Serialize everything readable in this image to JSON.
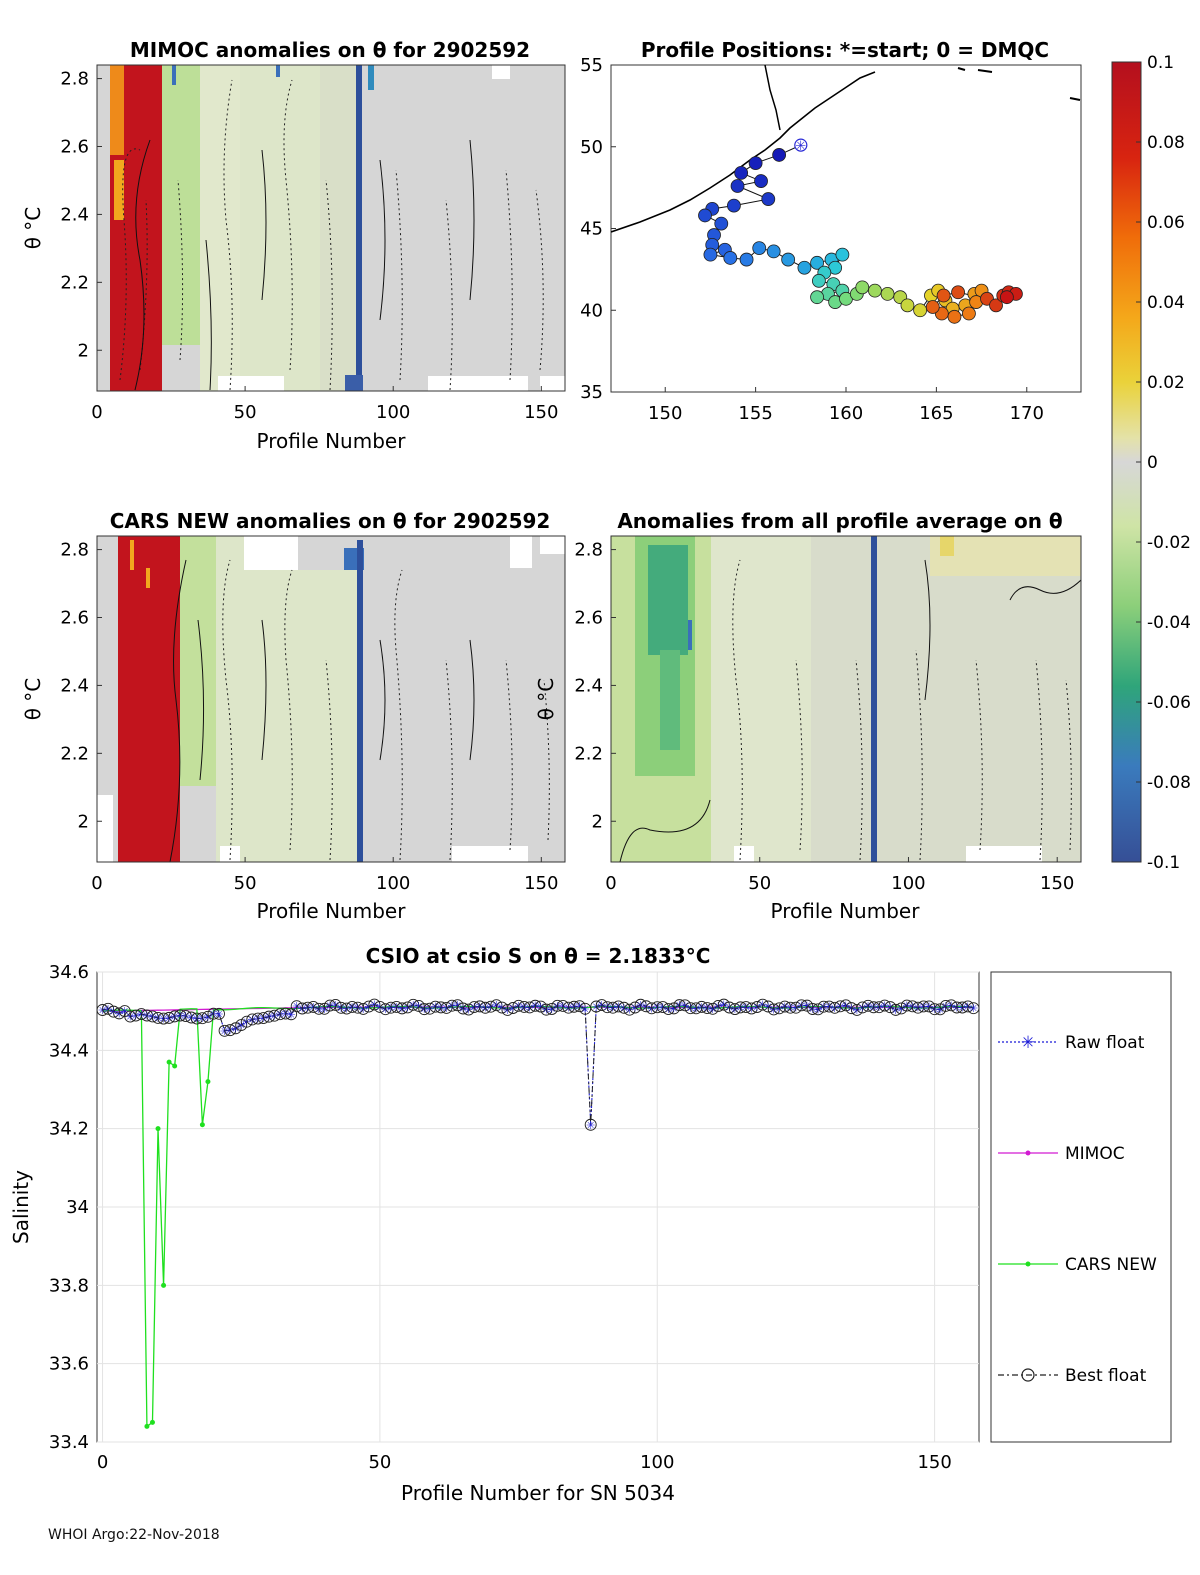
{
  "figure": {
    "footer": "WHOI Argo:22-Nov-2018"
  },
  "chart_data": [
    {
      "id": "mimoc",
      "type": "heatmap",
      "title": "MIMOC anomalies on θ  for 2902592",
      "xlabel": "Profile Number",
      "ylabel": "θ °C",
      "xlim": [
        0,
        158
      ],
      "ylim": [
        1.88,
        2.84
      ],
      "xticks": [
        0,
        50,
        100,
        150
      ],
      "yticks": [
        2,
        2.2,
        2.4,
        2.6,
        2.8
      ],
      "anomaly_note": "strong positive anomaly at profiles 5-22, light negative elsewhere"
    },
    {
      "id": "positions",
      "type": "scatter",
      "title": "Profile Positions: *=start; 0 = DMQC",
      "xlim": [
        147,
        173
      ],
      "ylim": [
        35,
        55
      ],
      "xticks": [
        150,
        155,
        160,
        165,
        170
      ],
      "yticks": [
        35,
        40,
        45,
        50,
        55
      ],
      "start": [
        157.5,
        50.1
      ],
      "track": [
        [
          157.5,
          50.1
        ],
        [
          156.3,
          49.5
        ],
        [
          155.0,
          49.0
        ],
        [
          154.2,
          48.4
        ],
        [
          155.3,
          47.9
        ],
        [
          154.0,
          47.6
        ],
        [
          155.7,
          46.8
        ],
        [
          153.8,
          46.4
        ],
        [
          152.6,
          46.2
        ],
        [
          152.2,
          45.8
        ],
        [
          153.1,
          45.3
        ],
        [
          152.7,
          44.6
        ],
        [
          152.6,
          44.0
        ],
        [
          153.3,
          43.7
        ],
        [
          152.5,
          43.4
        ],
        [
          153.6,
          43.2
        ],
        [
          154.5,
          43.1
        ],
        [
          155.2,
          43.8
        ],
        [
          156.0,
          43.6
        ],
        [
          156.8,
          43.1
        ],
        [
          157.7,
          42.6
        ],
        [
          158.4,
          42.9
        ],
        [
          159.2,
          43.1
        ],
        [
          159.8,
          43.4
        ],
        [
          159.4,
          42.6
        ],
        [
          158.8,
          42.3
        ],
        [
          158.5,
          41.8
        ],
        [
          159.3,
          41.6
        ],
        [
          159.8,
          41.2
        ],
        [
          159.0,
          41.0
        ],
        [
          158.4,
          40.8
        ],
        [
          159.4,
          40.5
        ],
        [
          160.0,
          40.7
        ],
        [
          160.6,
          41.0
        ],
        [
          160.9,
          41.4
        ],
        [
          161.6,
          41.2
        ],
        [
          162.3,
          41.0
        ],
        [
          163.0,
          40.8
        ],
        [
          163.4,
          40.3
        ],
        [
          164.1,
          40.0
        ],
        [
          164.7,
          40.9
        ],
        [
          165.1,
          41.2
        ],
        [
          165.5,
          40.6
        ],
        [
          165.9,
          40.1
        ],
        [
          166.6,
          40.3
        ],
        [
          167.1,
          41.0
        ],
        [
          167.5,
          41.2
        ],
        [
          167.2,
          40.5
        ],
        [
          166.8,
          39.8
        ],
        [
          166.0,
          39.6
        ],
        [
          165.3,
          39.8
        ],
        [
          164.8,
          40.2
        ],
        [
          165.4,
          40.9
        ],
        [
          166.2,
          41.1
        ],
        [
          167.8,
          40.7
        ],
        [
          168.3,
          40.3
        ],
        [
          168.7,
          40.9
        ],
        [
          169.0,
          41.1
        ],
        [
          169.4,
          41.0
        ],
        [
          168.9,
          40.8
        ]
      ]
    },
    {
      "id": "cars",
      "type": "heatmap",
      "title": "CARS NEW anomalies on θ for 2902592",
      "xlabel": "Profile Number",
      "ylabel": "θ °C",
      "xlim": [
        0,
        158
      ],
      "ylim": [
        1.88,
        2.84
      ],
      "xticks": [
        0,
        50,
        100,
        150
      ],
      "yticks": [
        2,
        2.2,
        2.4,
        2.6,
        2.8
      ]
    },
    {
      "id": "allavg",
      "type": "heatmap",
      "title": "Anomalies from all profile average on θ",
      "xlabel": "Profile Number",
      "ylabel": "θ °C",
      "xlim": [
        0,
        158
      ],
      "ylim": [
        1.88,
        2.84
      ],
      "xticks": [
        0,
        50,
        100,
        150
      ],
      "yticks": [
        2,
        2.2,
        2.4,
        2.6,
        2.8
      ]
    },
    {
      "id": "colorbar",
      "type": "heatmap",
      "title": "",
      "clim": [
        -0.1,
        0.1
      ],
      "tick_labels": [
        "0.1",
        "0.08",
        "0.06",
        "0.04",
        "0.02",
        "0",
        "-0.02",
        "-0.04",
        "-0.06",
        "-0.08",
        "-0.1"
      ],
      "tick_values": [
        0.1,
        0.08,
        0.06,
        0.04,
        0.02,
        0,
        -0.02,
        -0.04,
        -0.06,
        -0.08,
        -0.1
      ]
    },
    {
      "id": "salinity",
      "type": "line",
      "title": "CSIO at csio S on θ = 2.1833°C",
      "xlabel": "Profile Number for SN 5034",
      "ylabel": "Salinity",
      "xlim": [
        -1,
        158
      ],
      "ylim": [
        33.4,
        34.6
      ],
      "xticks": [
        0,
        50,
        100,
        150
      ],
      "yticks": [
        33.4,
        33.6,
        33.8,
        34,
        34.2,
        34.4,
        34.6
      ],
      "ytick_labels": [
        "33.4",
        "33.6",
        "33.8",
        "34",
        "34.2",
        "34.4",
        "34.6"
      ],
      "legend": {
        "raw": "Raw float",
        "mimoc": "MIMOC",
        "cars": "CARS NEW",
        "best": "Best float"
      },
      "legend_placement": "right",
      "cars_dips": [
        {
          "x": 8,
          "y": 33.44
        },
        {
          "x": 9,
          "y": 33.45
        },
        {
          "x": 10,
          "y": 34.2
        },
        {
          "x": 11,
          "y": 33.8
        },
        {
          "x": 12,
          "y": 34.37
        },
        {
          "x": 13,
          "y": 34.36
        },
        {
          "x": 18,
          "y": 34.21
        },
        {
          "x": 19,
          "y": 34.32
        }
      ],
      "raw_outlier": {
        "x": 88,
        "y": 34.21
      },
      "baseline_start": 34.5,
      "baseline_end": 34.51
    }
  ]
}
